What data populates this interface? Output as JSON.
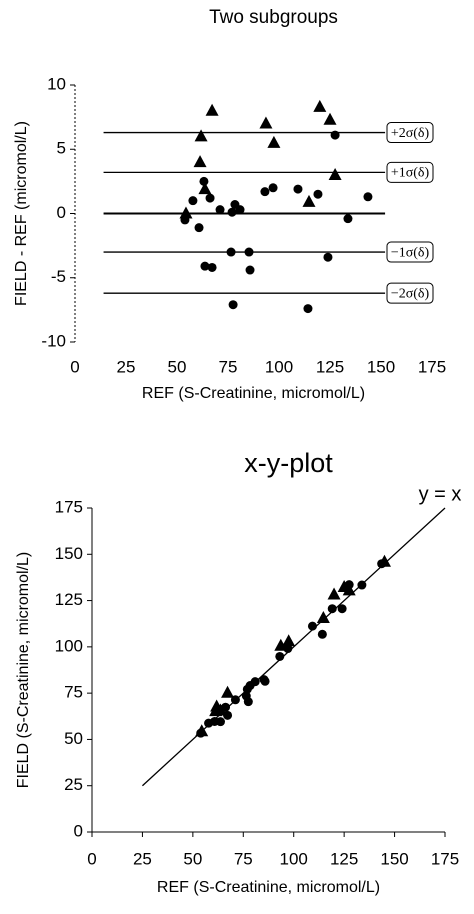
{
  "chart_data": [
    {
      "type": "scatter",
      "title": "Two subgroups",
      "x_label": "REF (S-Creatinine, micromol/L)",
      "y_label": "FIELD - REF (micromol/L)",
      "xlim": [
        0,
        175
      ],
      "xticks": [
        0,
        25,
        50,
        75,
        100,
        125,
        150,
        175
      ],
      "ylim": [
        -10,
        10
      ],
      "yticks": [
        -10,
        -5,
        0,
        5,
        10
      ],
      "hlines": [
        {
          "value": 6.3,
          "label": "+2σ(δ)"
        },
        {
          "value": 3.2,
          "label": "+1σ(δ)"
        },
        {
          "value": 0,
          "label": null
        },
        {
          "value": -3.0,
          "label": "−1σ(δ)"
        },
        {
          "value": -6.2,
          "label": "−2σ(δ)"
        }
      ],
      "hline_xrange": [
        14,
        152
      ],
      "series": [
        {
          "marker": "triangle",
          "color": "#000000",
          "x": [
            54.4,
            61.8,
            61.3,
            63.7,
            67.2,
            93.6,
            97.5,
            120,
            125,
            127.5,
            114.7
          ],
          "values": [
            0,
            6.0,
            4.0,
            1.9,
            8.0,
            7.0,
            5.5,
            8.3,
            7.3,
            3.0,
            0.9
          ]
        },
        {
          "marker": "circle",
          "color": "#000000",
          "x": [
            53.9,
            57.8,
            60.8,
            63.2,
            66.2,
            63.7,
            67.2,
            71.1,
            77,
            78.4,
            76.5,
            77.5,
            80.9,
            85.3,
            85.8,
            93.1,
            97.1,
            109.3,
            114.2,
            119.1,
            124,
            127.5,
            133.8,
            143.6
          ],
          "values": [
            -0.5,
            1.0,
            -1.1,
            2.5,
            1.2,
            -4.1,
            -4.2,
            0.3,
            0.1,
            0.7,
            -3.0,
            -7.1,
            0.3,
            -3.0,
            -4.4,
            1.7,
            2.0,
            1.9,
            -7.4,
            1.5,
            -3.4,
            6.1,
            -0.4,
            1.3
          ]
        }
      ]
    },
    {
      "type": "scatter",
      "title": "x-y-plot",
      "x_label": "REF (S-Creatinine, micromol/L)",
      "y_label": "FIELD (S-Creatinine, micromol/L)",
      "xlim": [
        0,
        175
      ],
      "xticks": [
        0,
        25,
        50,
        75,
        100,
        125,
        150,
        175
      ],
      "ylim": [
        0,
        175
      ],
      "yticks": [
        0,
        25,
        50,
        75,
        100,
        125,
        150,
        175
      ],
      "reference_line": {
        "label": "y = x",
        "x": [
          25,
          175
        ],
        "y": [
          25,
          175
        ]
      },
      "series": [
        {
          "marker": "triangle",
          "color": "#000000",
          "x": [
            54.4,
            61.8,
            61.3,
            63.7,
            67.2,
            93.6,
            97.5,
            120,
            125,
            127.5,
            114.7,
            145
          ],
          "values": [
            54.4,
            67.8,
            65.3,
            65.6,
            75.2,
            100.6,
            103,
            128.3,
            132.3,
            130.5,
            115.6,
            146
          ]
        },
        {
          "marker": "circle",
          "color": "#000000",
          "x": [
            53.9,
            57.8,
            60.8,
            63.2,
            66.2,
            63.7,
            67.2,
            71.1,
            77,
            78.4,
            76.5,
            77.5,
            80.9,
            85.3,
            85.8,
            93.1,
            97.1,
            109.3,
            114.2,
            119.1,
            124,
            127.5,
            133.8,
            143.6
          ],
          "values": [
            53.4,
            58.8,
            59.7,
            65.7,
            67.4,
            59.6,
            63,
            71.4,
            77.1,
            79.1,
            73.5,
            70.4,
            81.2,
            82.3,
            81.4,
            94.8,
            99.1,
            111.2,
            106.8,
            120.6,
            120.6,
            133.6,
            133.4,
            144.9
          ]
        }
      ]
    }
  ]
}
